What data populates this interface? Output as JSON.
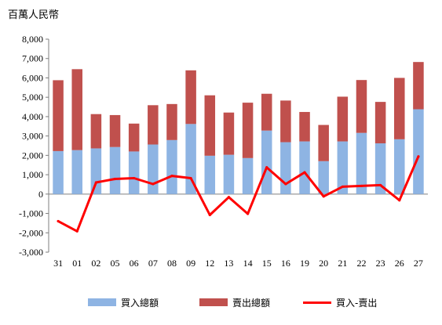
{
  "chart_data": {
    "type": "bar",
    "stacked": true,
    "unit_label": "百萬人民幣",
    "categories": [
      "31",
      "01",
      "02",
      "05",
      "06",
      "07",
      "08",
      "09",
      "12",
      "13",
      "14",
      "15",
      "16",
      "19",
      "20",
      "21",
      "22",
      "23",
      "26",
      "27"
    ],
    "series": [
      {
        "name": "買入總額",
        "kind": "bar",
        "color": "#8EB4E3",
        "values": [
          2220,
          2270,
          2360,
          2430,
          2200,
          2560,
          2790,
          3620,
          1980,
          2030,
          1860,
          3280,
          2680,
          2720,
          1700,
          2720,
          3160,
          2620,
          2830,
          4380
        ]
      },
      {
        "name": "賣出總額",
        "kind": "bar",
        "color": "#C0504D",
        "values": [
          3660,
          4180,
          1770,
          1650,
          1440,
          2030,
          1860,
          2770,
          3120,
          2180,
          2860,
          1900,
          2150,
          1520,
          1870,
          2310,
          2730,
          2140,
          3170,
          2440
        ]
      },
      {
        "name": "買入-賣出",
        "kind": "line",
        "color": "#FF0000",
        "values": [
          -1400,
          -1920,
          600,
          780,
          820,
          520,
          940,
          820,
          -1080,
          -160,
          -1020,
          1380,
          520,
          1120,
          -120,
          380,
          420,
          460,
          -320,
          1940
        ]
      }
    ],
    "ylim": [
      -3000,
      8000
    ],
    "yticks": [
      -3000,
      -2000,
      -1000,
      0,
      1000,
      2000,
      3000,
      4000,
      5000,
      6000,
      7000,
      8000
    ],
    "ytick_labels": [
      "-3,000",
      "-2,000",
      "-1,000",
      "0",
      "1,000",
      "2,000",
      "3,000",
      "4,000",
      "5,000",
      "6,000",
      "7,000",
      "8,000"
    ],
    "grid": false,
    "legend_position": "bottom"
  }
}
